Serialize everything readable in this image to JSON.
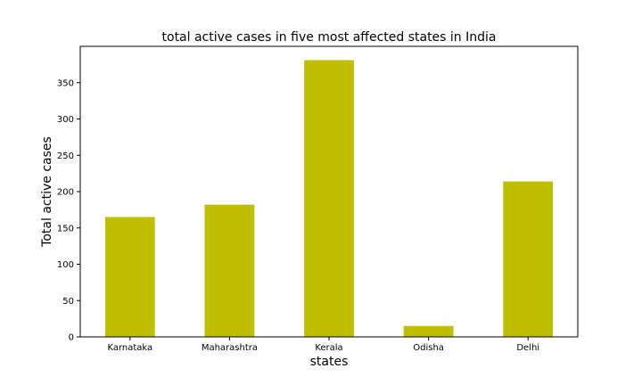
{
  "chart_data": {
    "type": "bar",
    "title": "total active cases in five most affected states in India",
    "xlabel": "states",
    "ylabel": "Total active cases",
    "categories": [
      "Karnataka",
      "Maharashtra",
      "Kerala",
      "Odisha",
      "Delhi"
    ],
    "values": [
      165,
      182,
      381,
      15,
      214
    ],
    "ylim": [
      0,
      400
    ],
    "yticks": [
      0,
      50,
      100,
      150,
      200,
      250,
      300,
      350
    ],
    "bar_color": "#bfbf00",
    "grid": false,
    "legend": "none"
  }
}
